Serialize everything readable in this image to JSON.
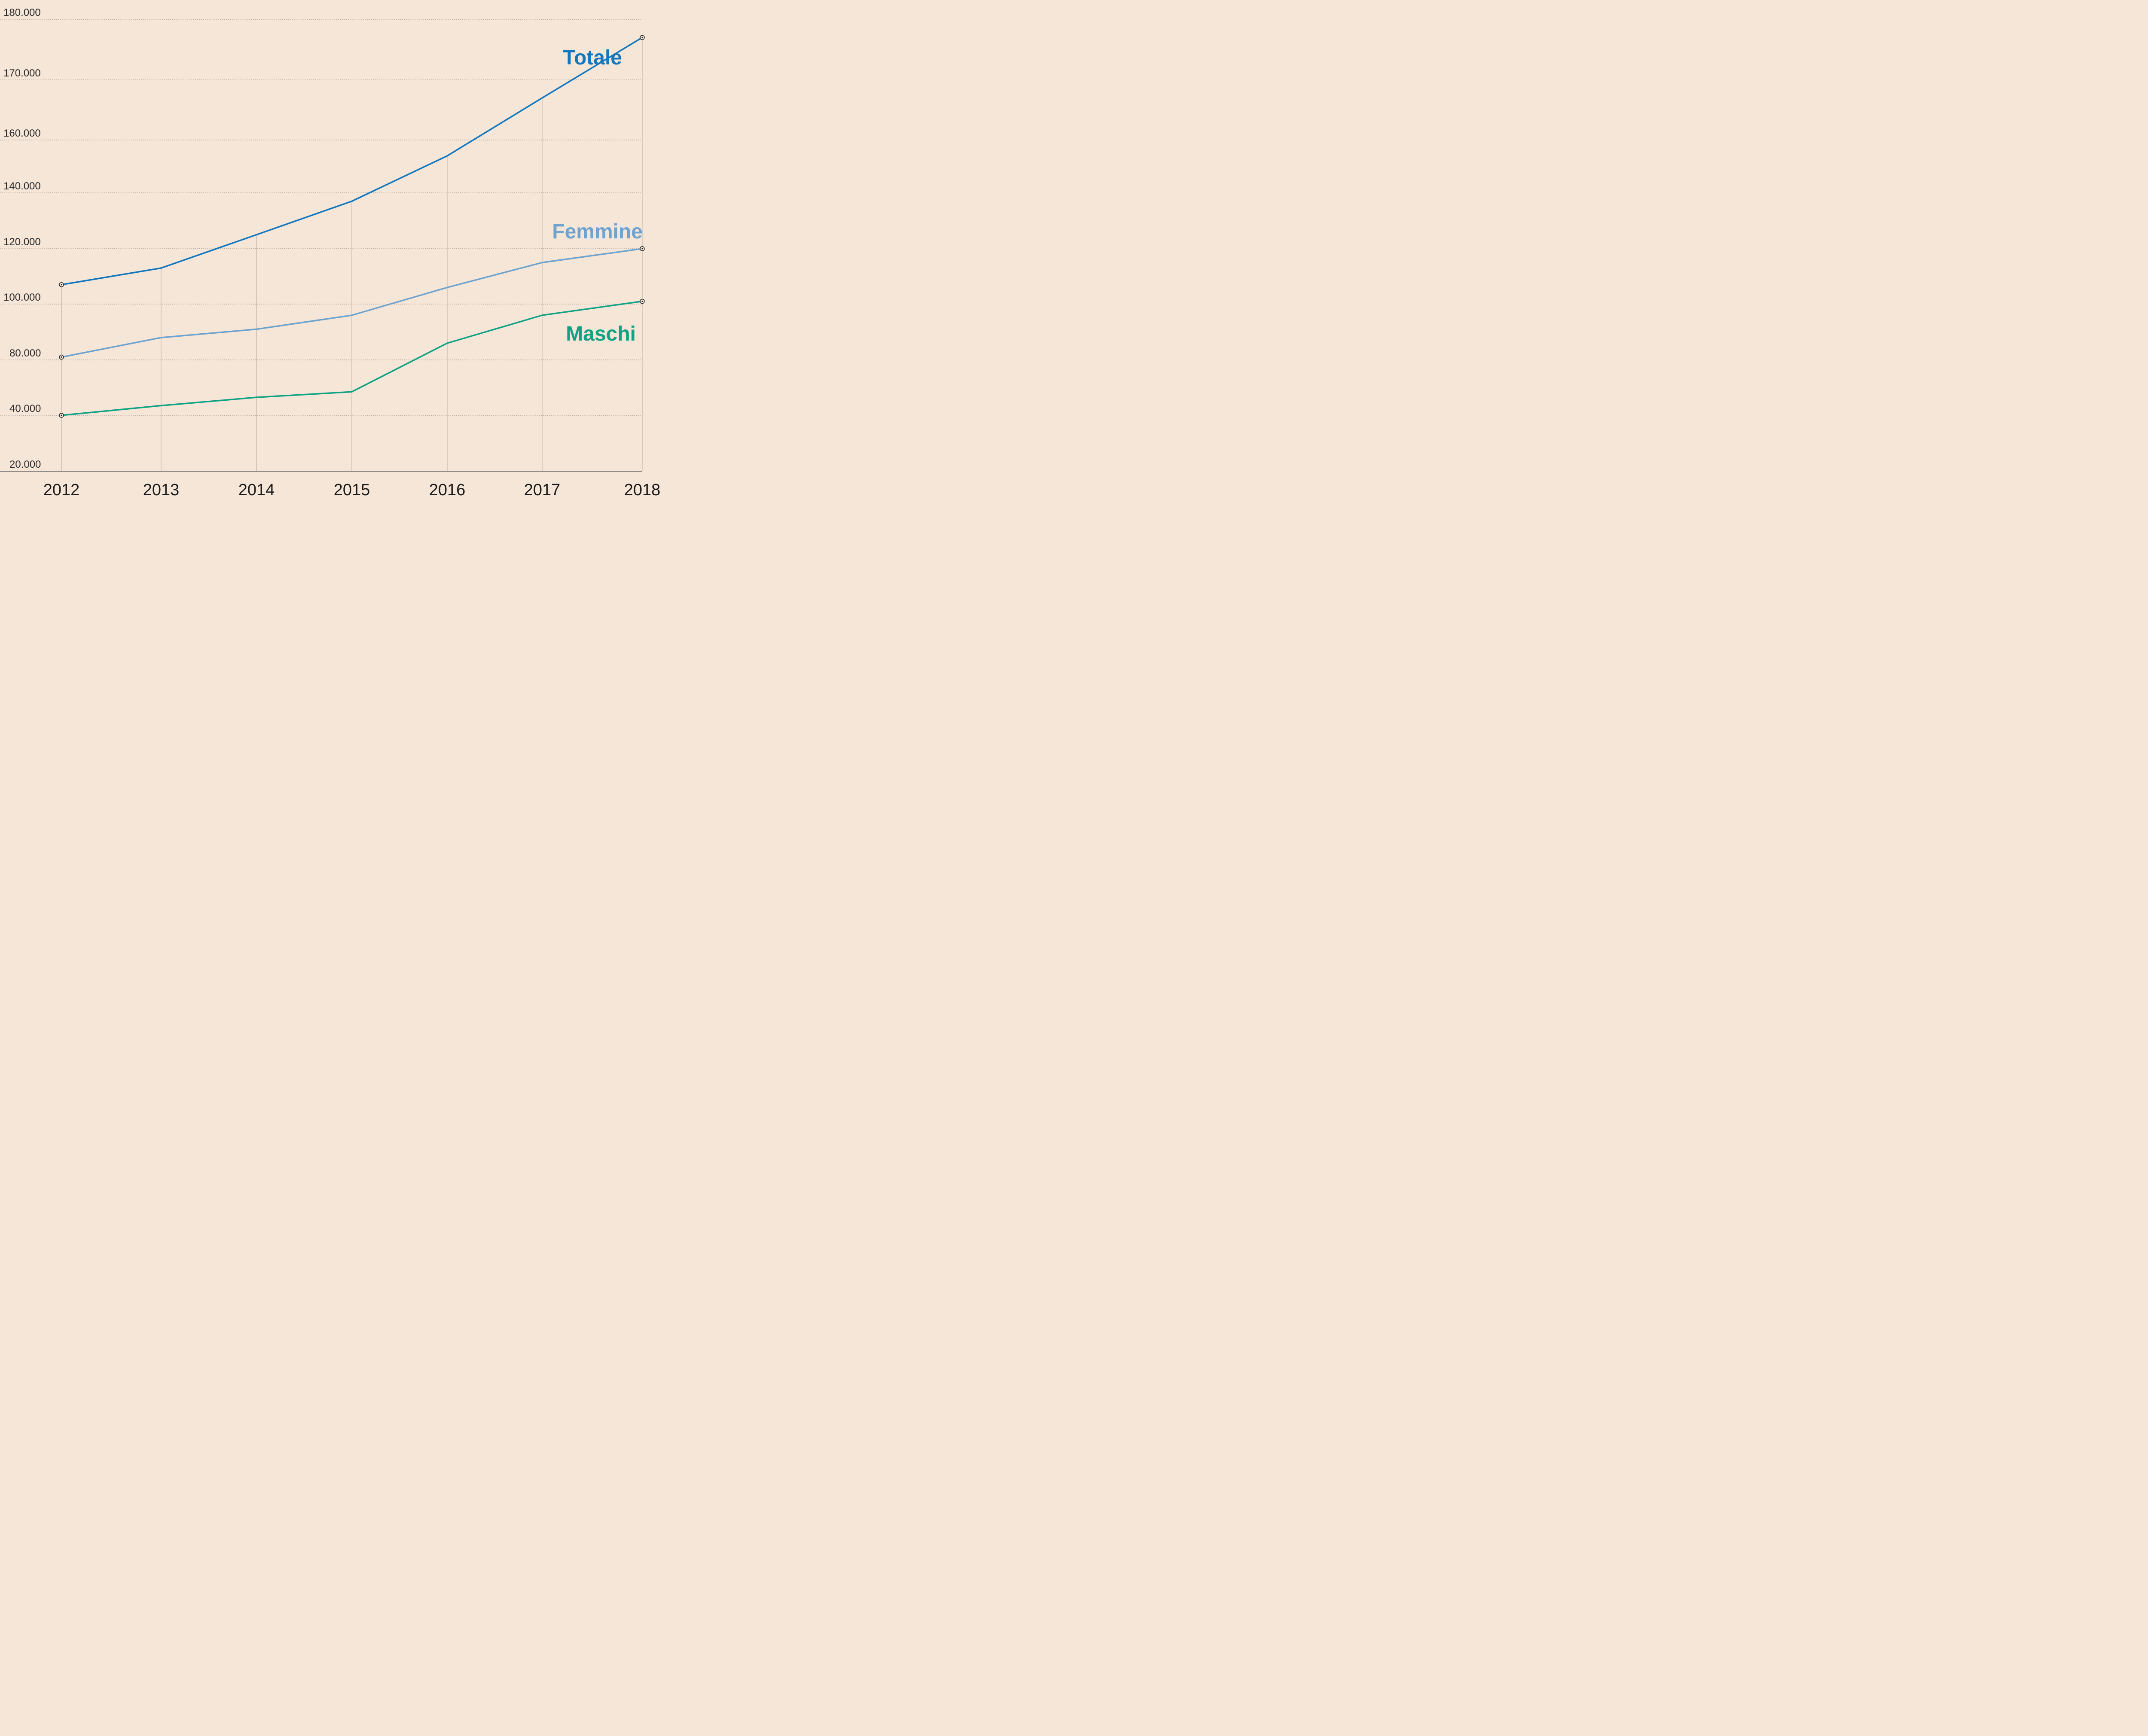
{
  "chart_data": {
    "type": "line",
    "title": "",
    "xlabel": "",
    "ylabel": "",
    "x": [
      "2012",
      "2013",
      "2014",
      "2015",
      "2016",
      "2017",
      "2018"
    ],
    "y_ticks": [
      "20.000",
      "40.000",
      "80.000",
      "100.000",
      "120.000",
      "140.000",
      "160.000",
      "170.000",
      "180.000"
    ],
    "grid": "horizontal-dotted",
    "series": [
      {
        "name": "Totale",
        "color": "#1277bf",
        "values": [
          107000,
          113000,
          125000,
          137000,
          154000,
          167000,
          177000
        ]
      },
      {
        "name": "Femmine",
        "color": "#6fa3cf",
        "values": [
          81000,
          88000,
          91000,
          96000,
          106000,
          115000,
          120000
        ]
      },
      {
        "name": "Maschi",
        "color": "#0fa283",
        "values": [
          40000,
          47000,
          53000,
          57000,
          86000,
          96000,
          101000
        ]
      }
    ]
  }
}
